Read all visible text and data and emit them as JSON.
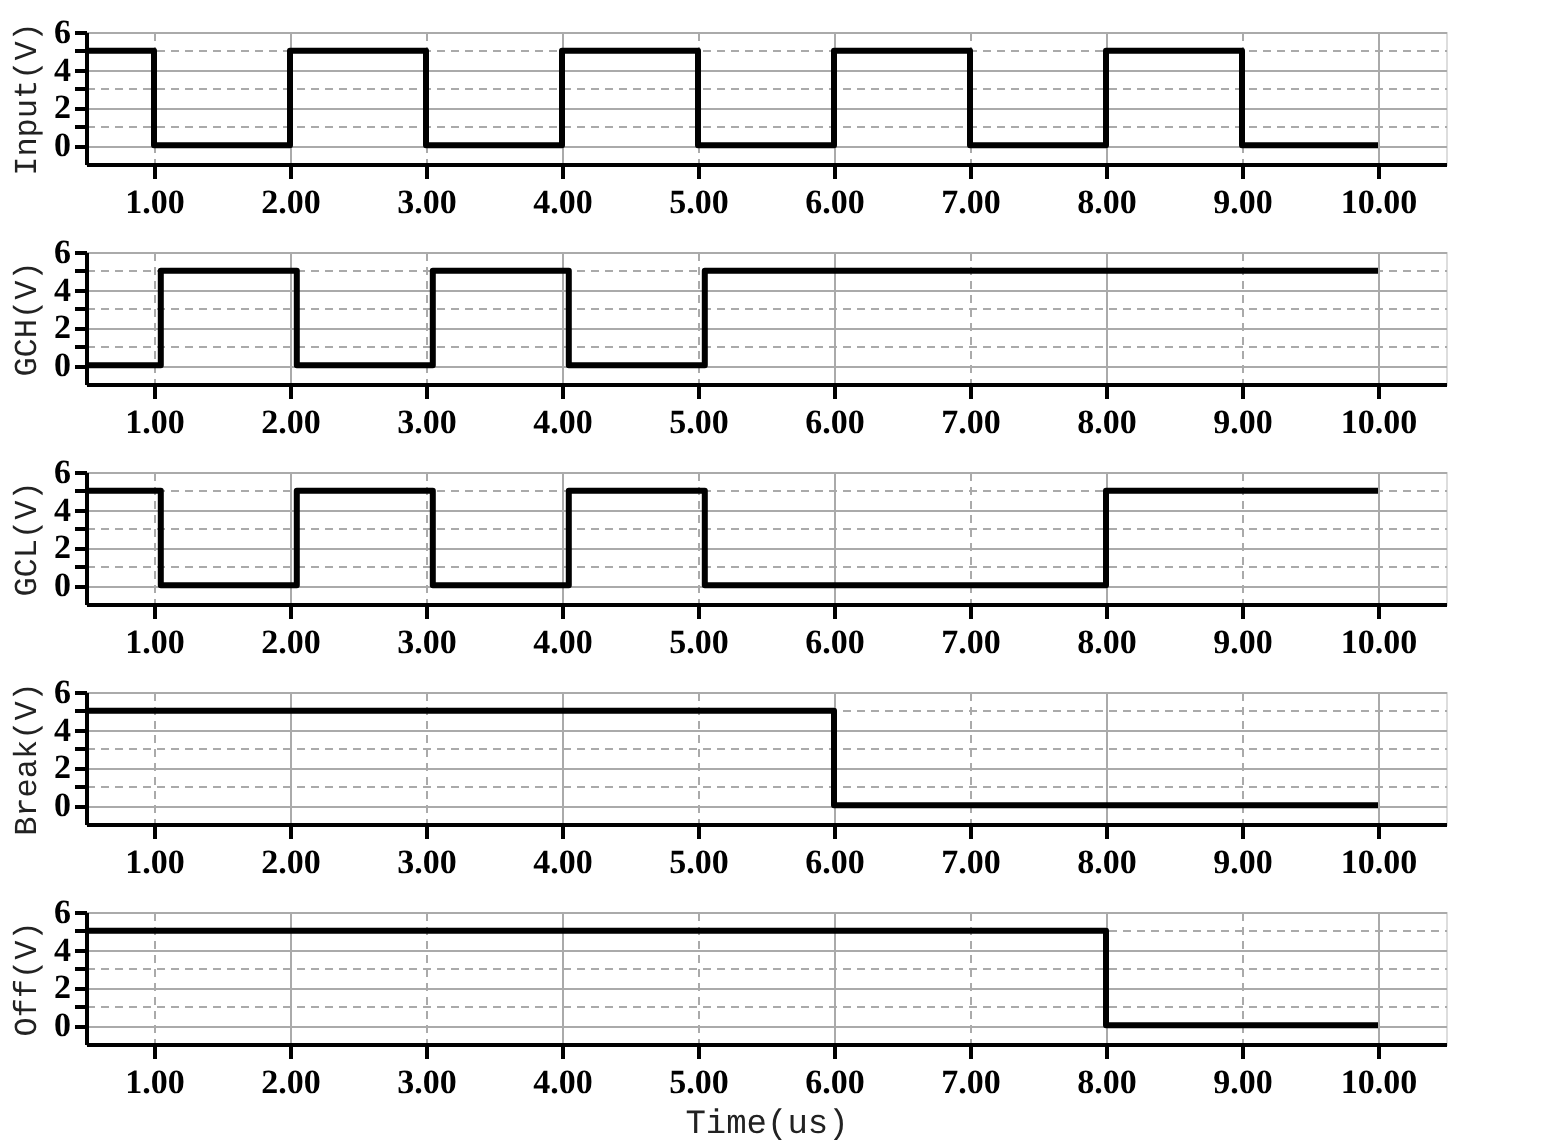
{
  "chart_data": [
    {
      "type": "step",
      "ylabel": "Input(V)",
      "xlim": [
        0.5,
        10.5
      ],
      "ylim": [
        -1,
        6
      ],
      "grid": true,
      "marker": "none",
      "line_style": "solid",
      "xticks": [
        {
          "value": 1,
          "label": "1.00"
        },
        {
          "value": 2,
          "label": "2.00"
        },
        {
          "value": 3,
          "label": "3.00"
        },
        {
          "value": 4,
          "label": "4.00"
        },
        {
          "value": 5,
          "label": "5.00"
        },
        {
          "value": 6,
          "label": "6.00"
        },
        {
          "value": 7,
          "label": "7.00"
        },
        {
          "value": 8,
          "label": "8.00"
        },
        {
          "value": 9,
          "label": "9.00"
        },
        {
          "value": 10,
          "label": "10.00"
        }
      ],
      "yticks": [
        0,
        {
          "value": 1,
          "label": null
        },
        2,
        {
          "value": 3,
          "label": null
        },
        4,
        {
          "value": 5,
          "label": null
        },
        6
      ],
      "series": [
        {
          "color": "#000000",
          "x": [
            0.5,
            1,
            2,
            3,
            4,
            5,
            6,
            7,
            8,
            9,
            10
          ],
          "values": [
            5,
            0,
            5,
            0,
            5,
            0,
            5,
            0,
            5,
            0,
            0
          ]
        }
      ]
    },
    {
      "type": "step",
      "ylabel": "GCH(V)",
      "xlim": [
        0.5,
        10.5
      ],
      "ylim": [
        -1,
        6
      ],
      "grid": true,
      "marker": "none",
      "line_style": "solid",
      "xticks": [
        {
          "value": 1,
          "label": "1.00"
        },
        {
          "value": 2,
          "label": "2.00"
        },
        {
          "value": 3,
          "label": "3.00"
        },
        {
          "value": 4,
          "label": "4.00"
        },
        {
          "value": 5,
          "label": "5.00"
        },
        {
          "value": 6,
          "label": "6.00"
        },
        {
          "value": 7,
          "label": "7.00"
        },
        {
          "value": 8,
          "label": "8.00"
        },
        {
          "value": 9,
          "label": "9.00"
        },
        {
          "value": 10,
          "label": "10.00"
        }
      ],
      "yticks": [
        0,
        {
          "value": 1,
          "label": null
        },
        2,
        {
          "value": 3,
          "label": null
        },
        4,
        {
          "value": 5,
          "label": null
        },
        6
      ],
      "series": [
        {
          "color": "#000000",
          "x": [
            0.5,
            1.05,
            2.05,
            3.05,
            4.05,
            5.05,
            10
          ],
          "values": [
            0,
            5,
            0,
            5,
            0,
            5,
            5
          ]
        }
      ]
    },
    {
      "type": "step",
      "ylabel": "GCL(V)",
      "xlim": [
        0.5,
        10.5
      ],
      "ylim": [
        -1,
        6
      ],
      "grid": true,
      "marker": "none",
      "line_style": "solid",
      "xticks": [
        {
          "value": 1,
          "label": "1.00"
        },
        {
          "value": 2,
          "label": "2.00"
        },
        {
          "value": 3,
          "label": "3.00"
        },
        {
          "value": 4,
          "label": "4.00"
        },
        {
          "value": 5,
          "label": "5.00"
        },
        {
          "value": 6,
          "label": "6.00"
        },
        {
          "value": 7,
          "label": "7.00"
        },
        {
          "value": 8,
          "label": "8.00"
        },
        {
          "value": 9,
          "label": "9.00"
        },
        {
          "value": 10,
          "label": "10.00"
        }
      ],
      "yticks": [
        0,
        {
          "value": 1,
          "label": null
        },
        2,
        {
          "value": 3,
          "label": null
        },
        4,
        {
          "value": 5,
          "label": null
        },
        6
      ],
      "series": [
        {
          "color": "#000000",
          "x": [
            0.5,
            1.05,
            2.05,
            3.05,
            4.05,
            5.05,
            8,
            10
          ],
          "values": [
            5,
            0,
            5,
            0,
            5,
            0,
            5,
            5
          ]
        }
      ]
    },
    {
      "type": "step",
      "ylabel": "Break(V)",
      "xlim": [
        0.5,
        10.5
      ],
      "ylim": [
        -1,
        6
      ],
      "grid": true,
      "marker": "none",
      "line_style": "solid",
      "xticks": [
        {
          "value": 1,
          "label": "1.00"
        },
        {
          "value": 2,
          "label": "2.00"
        },
        {
          "value": 3,
          "label": "3.00"
        },
        {
          "value": 4,
          "label": "4.00"
        },
        {
          "value": 5,
          "label": "5.00"
        },
        {
          "value": 6,
          "label": "6.00"
        },
        {
          "value": 7,
          "label": "7.00"
        },
        {
          "value": 8,
          "label": "8.00"
        },
        {
          "value": 9,
          "label": "9.00"
        },
        {
          "value": 10,
          "label": "10.00"
        }
      ],
      "yticks": [
        0,
        {
          "value": 1,
          "label": null
        },
        2,
        {
          "value": 3,
          "label": null
        },
        4,
        {
          "value": 5,
          "label": null
        },
        6
      ],
      "series": [
        {
          "color": "#000000",
          "x": [
            0.5,
            6,
            10
          ],
          "values": [
            5,
            0,
            0
          ]
        }
      ]
    },
    {
      "type": "step",
      "ylabel": "Off(V)",
      "xlabel": "Time(us)",
      "xlim": [
        0.5,
        10.5
      ],
      "ylim": [
        -1,
        6
      ],
      "grid": true,
      "marker": "none",
      "line_style": "solid",
      "xticks": [
        {
          "value": 1,
          "label": "1.00"
        },
        {
          "value": 2,
          "label": "2.00"
        },
        {
          "value": 3,
          "label": "3.00"
        },
        {
          "value": 4,
          "label": "4.00"
        },
        {
          "value": 5,
          "label": "5.00"
        },
        {
          "value": 6,
          "label": "6.00"
        },
        {
          "value": 7,
          "label": "7.00"
        },
        {
          "value": 8,
          "label": "8.00"
        },
        {
          "value": 9,
          "label": "9.00"
        },
        {
          "value": 10,
          "label": "10.00"
        }
      ],
      "yticks": [
        0,
        {
          "value": 1,
          "label": null
        },
        2,
        {
          "value": 3,
          "label": null
        },
        4,
        {
          "value": 5,
          "label": null
        },
        6
      ],
      "series": [
        {
          "color": "#000000",
          "x": [
            0.5,
            8,
            10
          ],
          "values": [
            5,
            0,
            0
          ]
        }
      ]
    }
  ]
}
